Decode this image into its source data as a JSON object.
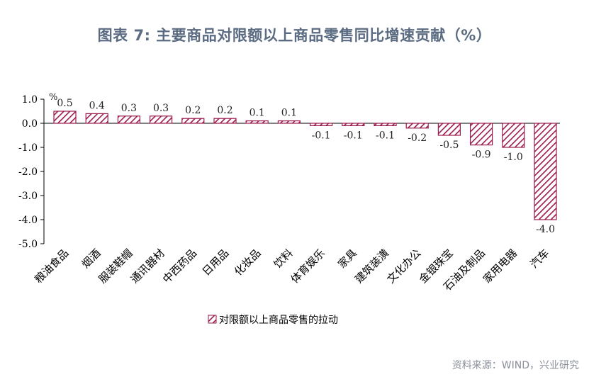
{
  "title": "图表 7:   主要商品对限额以上商品零售同比增速贡献（%）",
  "source": "资料来源：WIND，兴业研究",
  "colors": {
    "bar": "#9b1b4e",
    "axis": "#000000",
    "title": "#5a6b82"
  },
  "chart_data": {
    "type": "bar",
    "unit_label": "%",
    "categories": [
      "粮油食品",
      "烟酒",
      "服装鞋帽",
      "通讯器材",
      "中西药品",
      "日用品",
      "化妆品",
      "饮料",
      "体育娱乐",
      "家具",
      "建筑装潢",
      "文化办公",
      "金银珠宝",
      "石油及制品",
      "家用电器",
      "汽车"
    ],
    "series": [
      {
        "name": "对限额以上商品零售的拉动",
        "values": [
          0.5,
          0.4,
          0.3,
          0.3,
          0.2,
          0.2,
          0.1,
          0.1,
          -0.1,
          -0.1,
          -0.1,
          -0.2,
          -0.5,
          -0.9,
          -1.0,
          -4.0
        ],
        "labels": [
          "0.5",
          "0.4",
          "0.3",
          "0.3",
          "0.2",
          "0.2",
          "0.1",
          "0.1",
          "-0.1",
          "-0.1",
          "-0.1",
          "-0.2",
          "-0.5",
          "-0.9",
          "-1.0",
          "-4.0"
        ]
      }
    ],
    "ylim": [
      -5.0,
      1.0
    ],
    "yticks": [
      "1.0",
      "0.0",
      "-1.0",
      "-2.0",
      "-3.0",
      "-4.0",
      "-5.0"
    ],
    "legend_position": "bottom",
    "grid": false,
    "fill": "diagonal-hatch"
  }
}
